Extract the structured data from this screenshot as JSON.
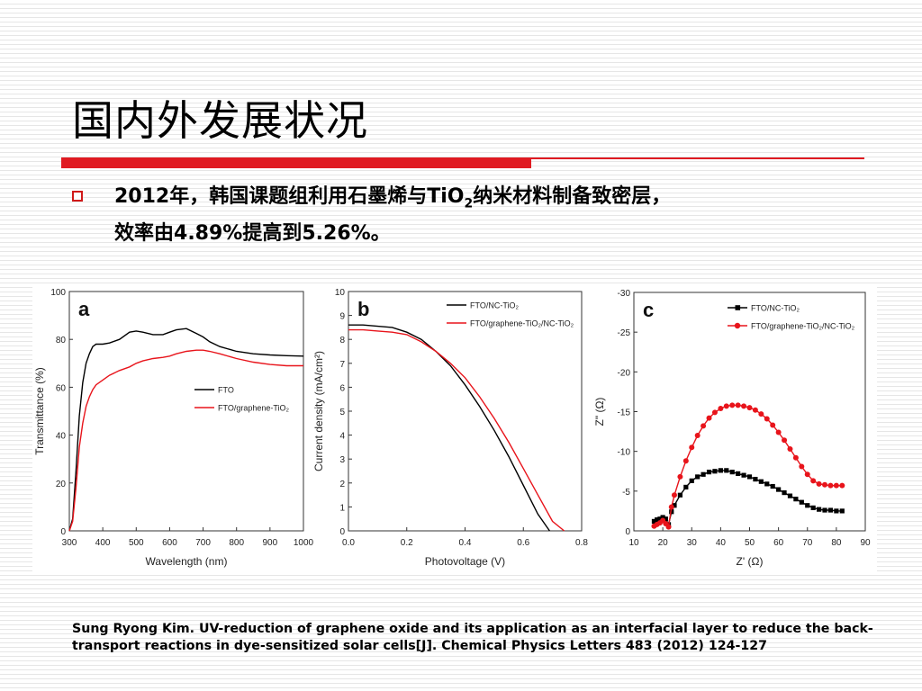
{
  "slide": {
    "title": "国内外发展状况",
    "bullet": {
      "line1_a": "2012",
      "line1_b": "年，韩国课题组利用石墨烯与",
      "line1_c": "TiO",
      "line1_sub": "2",
      "line1_d": "纳米材料制备致密层，",
      "line2_a": "效率由",
      "line2_b": "4.89%",
      "line2_c": "提高到",
      "line2_d": "5.26%",
      "line2_e": "。"
    },
    "citation": "Sung Ryong Kim. UV-reduction of graphene oxide and its application as an interfacial layer to reduce the back-transport reactions in dye-sensitized solar cells[J]. Chemical Physics Letters 483 (2012) 124-127"
  },
  "colors": {
    "accent_red": "#e01b22",
    "series_black": "#000000",
    "series_red": "#e8141b"
  },
  "chart_data": [
    {
      "type": "line",
      "panel_label": "a",
      "xlabel": "Wavelength (nm)",
      "ylabel": "Transmittance (%)",
      "xlim": [
        300,
        1000
      ],
      "ylim": [
        0,
        100
      ],
      "xticks": [
        300,
        400,
        500,
        600,
        700,
        800,
        900,
        1000
      ],
      "yticks": [
        0,
        20,
        40,
        60,
        80,
        100
      ],
      "legend_position": "center-right",
      "series": [
        {
          "name": "FTO",
          "color": "#000000",
          "x": [
            300,
            310,
            320,
            330,
            340,
            350,
            360,
            370,
            380,
            400,
            420,
            450,
            480,
            500,
            520,
            550,
            580,
            600,
            620,
            650,
            680,
            700,
            720,
            750,
            800,
            850,
            900,
            950,
            1000
          ],
          "y": [
            0,
            5,
            25,
            48,
            62,
            70,
            74,
            77,
            78,
            78,
            78.5,
            80,
            83,
            83.5,
            83,
            82,
            82,
            83,
            84,
            84.5,
            82.5,
            81,
            79,
            77,
            75,
            74,
            73.5,
            73.2,
            73
          ]
        },
        {
          "name": "FTO/graphene-TiO₂",
          "color": "#e8141b",
          "x": [
            300,
            310,
            320,
            330,
            340,
            350,
            360,
            370,
            380,
            400,
            420,
            450,
            480,
            500,
            520,
            550,
            580,
            600,
            620,
            650,
            680,
            700,
            720,
            750,
            800,
            850,
            900,
            950,
            1000
          ],
          "y": [
            0,
            4,
            18,
            35,
            45,
            52,
            56,
            59,
            61,
            63,
            65,
            67,
            68.5,
            70,
            71,
            72,
            72.5,
            73,
            74,
            75,
            75.5,
            75.5,
            75,
            74,
            72,
            70.5,
            69.5,
            69,
            69
          ]
        }
      ]
    },
    {
      "type": "line",
      "panel_label": "b",
      "xlabel": "Photovoltage (V)",
      "ylabel": "Current density (mA/cm²)",
      "xlim": [
        0.0,
        0.8
      ],
      "ylim": [
        0,
        10
      ],
      "xticks": [
        0.0,
        0.2,
        0.4,
        0.6,
        0.8
      ],
      "yticks": [
        0,
        1,
        2,
        3,
        4,
        5,
        6,
        7,
        8,
        9,
        10
      ],
      "legend_position": "top-right",
      "series": [
        {
          "name": "FTO/NC-TiO₂",
          "color": "#000000",
          "x": [
            0.0,
            0.05,
            0.1,
            0.15,
            0.2,
            0.25,
            0.3,
            0.35,
            0.4,
            0.45,
            0.5,
            0.55,
            0.6,
            0.65,
            0.69
          ],
          "y": [
            8.6,
            8.6,
            8.55,
            8.5,
            8.3,
            8.0,
            7.5,
            6.9,
            6.1,
            5.2,
            4.2,
            3.1,
            1.9,
            0.7,
            0
          ]
        },
        {
          "name": "FTO/graphene-TiO₂/NC-TiO₂",
          "color": "#e8141b",
          "x": [
            0.0,
            0.05,
            0.1,
            0.15,
            0.2,
            0.25,
            0.3,
            0.35,
            0.4,
            0.45,
            0.5,
            0.55,
            0.6,
            0.65,
            0.7,
            0.74
          ],
          "y": [
            8.4,
            8.4,
            8.35,
            8.3,
            8.2,
            7.9,
            7.5,
            7.0,
            6.4,
            5.6,
            4.7,
            3.7,
            2.6,
            1.5,
            0.4,
            0
          ]
        }
      ]
    },
    {
      "type": "scatter",
      "panel_label": "c",
      "xlabel": "Z' (Ω)",
      "ylabel": "Z\" (Ω)",
      "xlim": [
        10,
        90
      ],
      "ylim": [
        0,
        -30
      ],
      "xticks": [
        10,
        20,
        30,
        40,
        50,
        60,
        70,
        80,
        90
      ],
      "yticks": [
        0,
        -5,
        -10,
        -15,
        -20,
        -25,
        -30
      ],
      "legend_position": "top-right",
      "series": [
        {
          "name": "FTO/NC-TiO₂",
          "color": "#000000",
          "marker": "square",
          "x": [
            17,
            18,
            19,
            20,
            21,
            22,
            23,
            24,
            26,
            28,
            30,
            32,
            34,
            36,
            38,
            40,
            42,
            44,
            46,
            48,
            50,
            52,
            54,
            56,
            58,
            60,
            62,
            64,
            66,
            68,
            70,
            72,
            74,
            76,
            78,
            80,
            82
          ],
          "y": [
            -1.2,
            -1.4,
            -1.5,
            -1.7,
            -1.5,
            -0.8,
            -2.4,
            -3.2,
            -4.5,
            -5.5,
            -6.3,
            -6.8,
            -7.1,
            -7.4,
            -7.5,
            -7.6,
            -7.6,
            -7.4,
            -7.2,
            -7.0,
            -6.8,
            -6.5,
            -6.2,
            -5.9,
            -5.6,
            -5.2,
            -4.8,
            -4.4,
            -4.0,
            -3.6,
            -3.2,
            -2.9,
            -2.7,
            -2.6,
            -2.6,
            -2.5,
            -2.5
          ]
        },
        {
          "name": "FTO/graphene-TiO₂/NC-TiO₂",
          "color": "#e8141b",
          "marker": "circle",
          "x": [
            17,
            18,
            19,
            20,
            21,
            22,
            23,
            24,
            26,
            28,
            30,
            32,
            34,
            36,
            38,
            40,
            42,
            44,
            46,
            48,
            50,
            52,
            54,
            56,
            58,
            60,
            62,
            64,
            66,
            68,
            70,
            72,
            74,
            76,
            78,
            80,
            82
          ],
          "y": [
            -0.6,
            -0.8,
            -1.0,
            -1.3,
            -0.9,
            -0.5,
            -3.0,
            -4.5,
            -6.8,
            -8.8,
            -10.5,
            -12.0,
            -13.2,
            -14.2,
            -14.9,
            -15.4,
            -15.7,
            -15.8,
            -15.8,
            -15.7,
            -15.5,
            -15.2,
            -14.7,
            -14.1,
            -13.3,
            -12.4,
            -11.4,
            -10.3,
            -9.2,
            -8.1,
            -7.1,
            -6.3,
            -5.9,
            -5.8,
            -5.7,
            -5.7,
            -5.7
          ]
        }
      ]
    }
  ]
}
